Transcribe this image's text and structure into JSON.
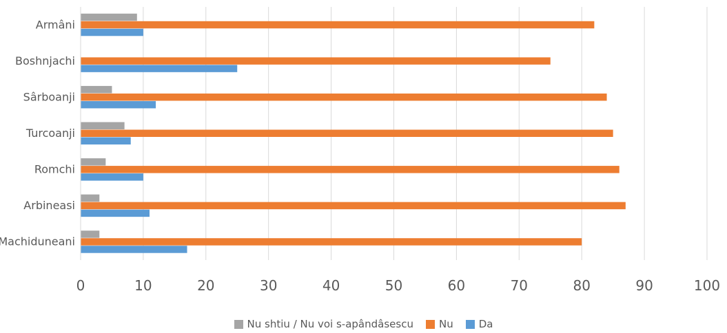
{
  "chart_data": {
    "type": "bar",
    "orientation": "horizontal",
    "categories": [
      "Armâni",
      "Boshnjachi",
      "Sârboanji",
      "Turcoanji",
      "Romchi",
      "Arbineasi",
      "Machiduneani"
    ],
    "series": [
      {
        "name": "Nu shtiu / Nu voi s-apândâsescu",
        "color": "#A5A5A5",
        "values": [
          9,
          0,
          5,
          7,
          4,
          3,
          3
        ]
      },
      {
        "name": "Nu",
        "color": "#ED7D31",
        "values": [
          82,
          75,
          84,
          85,
          86,
          87,
          80
        ]
      },
      {
        "name": "Da",
        "color": "#5B9BD5",
        "values": [
          10,
          25,
          12,
          8,
          10,
          11,
          17
        ]
      }
    ],
    "xlim": [
      0,
      100
    ],
    "xticks": [
      0,
      10,
      20,
      30,
      40,
      50,
      60,
      70,
      80,
      90,
      100
    ],
    "grid": true,
    "legend_position": "bottom",
    "title": "",
    "xlabel": "",
    "ylabel": ""
  }
}
